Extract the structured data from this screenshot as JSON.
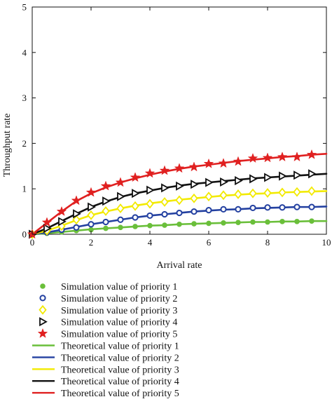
{
  "chart_data": {
    "type": "line",
    "title": "",
    "xlabel": "Arrival rate",
    "ylabel": "Throughput rate",
    "xlim": [
      0,
      10
    ],
    "ylim": [
      0,
      5
    ],
    "xticks": [
      0,
      2,
      4,
      6,
      8,
      10
    ],
    "yticks": [
      0,
      1,
      2,
      3,
      4,
      5
    ],
    "grid": false,
    "legend_position": "bottom",
    "sim_x": [
      0,
      0.5,
      1,
      1.5,
      2,
      2.5,
      3,
      3.5,
      4,
      4.5,
      5,
      5.5,
      6,
      6.5,
      7,
      7.5,
      8,
      8.5,
      9,
      9.5
    ],
    "series": [
      {
        "name": "Simulation value of priority 1",
        "kind": "markers",
        "marker": "filled-circle",
        "color": "#6abf3a",
        "values": [
          0,
          0.02,
          0.05,
          0.08,
          0.1,
          0.13,
          0.15,
          0.17,
          0.19,
          0.2,
          0.22,
          0.23,
          0.24,
          0.25,
          0.26,
          0.27,
          0.27,
          0.28,
          0.28,
          0.29
        ]
      },
      {
        "name": "Simulation value of priority 2",
        "kind": "markers",
        "marker": "open-circle",
        "color": "#2340a0",
        "values": [
          0,
          0.04,
          0.1,
          0.15,
          0.22,
          0.27,
          0.32,
          0.37,
          0.41,
          0.44,
          0.47,
          0.5,
          0.53,
          0.55,
          0.55,
          0.58,
          0.59,
          0.59,
          0.6,
          0.6
        ]
      },
      {
        "name": "Simulation value of priority 3",
        "kind": "markers",
        "marker": "open-diamond",
        "color": "#f2ea00",
        "values": [
          0,
          0.08,
          0.18,
          0.32,
          0.42,
          0.51,
          0.57,
          0.62,
          0.67,
          0.71,
          0.75,
          0.79,
          0.83,
          0.86,
          0.88,
          0.9,
          0.91,
          0.92,
          0.93,
          0.95
        ]
      },
      {
        "name": "Simulation value of priority 4",
        "kind": "markers",
        "marker": "open-triangle-right",
        "color": "#111111",
        "values": [
          0,
          0.13,
          0.28,
          0.45,
          0.6,
          0.73,
          0.83,
          0.9,
          0.97,
          1.02,
          1.06,
          1.1,
          1.14,
          1.15,
          1.18,
          1.22,
          1.25,
          1.28,
          1.3,
          1.33
        ]
      },
      {
        "name": "Simulation value of priority 5",
        "kind": "markers",
        "marker": "star",
        "color": "#e02020",
        "values": [
          0,
          0.26,
          0.5,
          0.74,
          0.92,
          1.06,
          1.14,
          1.25,
          1.34,
          1.4,
          1.45,
          1.48,
          1.55,
          1.56,
          1.6,
          1.67,
          1.68,
          1.7,
          1.7,
          1.75
        ]
      },
      {
        "name": "Theoretical value of priority 1",
        "kind": "line",
        "color": "#6abf3a",
        "x": [
          0,
          0.5,
          1,
          1.5,
          2,
          2.5,
          3,
          3.5,
          4,
          4.5,
          5,
          5.5,
          6,
          6.5,
          7,
          7.5,
          8,
          8.5,
          9,
          9.5,
          10
        ],
        "values": [
          0,
          0.02,
          0.05,
          0.08,
          0.11,
          0.13,
          0.15,
          0.17,
          0.19,
          0.2,
          0.22,
          0.23,
          0.24,
          0.25,
          0.26,
          0.27,
          0.27,
          0.28,
          0.28,
          0.29,
          0.29
        ]
      },
      {
        "name": "Theoretical value of priority 2",
        "kind": "line",
        "color": "#2340a0",
        "x": [
          0,
          0.5,
          1,
          1.5,
          2,
          2.5,
          3,
          3.5,
          4,
          4.5,
          5,
          5.5,
          6,
          6.5,
          7,
          7.5,
          8,
          8.5,
          9,
          9.5,
          10
        ],
        "values": [
          0,
          0.04,
          0.1,
          0.16,
          0.22,
          0.27,
          0.32,
          0.37,
          0.41,
          0.44,
          0.47,
          0.5,
          0.52,
          0.54,
          0.55,
          0.57,
          0.58,
          0.59,
          0.6,
          0.6,
          0.61
        ]
      },
      {
        "name": "Theoretical value of priority 3",
        "kind": "line",
        "color": "#f2ea00",
        "x": [
          0,
          0.5,
          1,
          1.5,
          2,
          2.5,
          3,
          3.5,
          4,
          4.5,
          5,
          5.5,
          6,
          6.5,
          7,
          7.5,
          8,
          8.5,
          9,
          9.5,
          10
        ],
        "values": [
          0,
          0.08,
          0.19,
          0.31,
          0.42,
          0.5,
          0.57,
          0.63,
          0.68,
          0.72,
          0.76,
          0.79,
          0.82,
          0.85,
          0.87,
          0.89,
          0.9,
          0.92,
          0.93,
          0.94,
          0.95
        ]
      },
      {
        "name": "Theoretical value of priority 4",
        "kind": "line",
        "color": "#111111",
        "x": [
          0,
          0.5,
          1,
          1.5,
          2,
          2.5,
          3,
          3.5,
          4,
          4.5,
          5,
          5.5,
          6,
          6.5,
          7,
          7.5,
          8,
          8.5,
          9,
          9.5,
          10
        ],
        "values": [
          0,
          0.13,
          0.29,
          0.45,
          0.6,
          0.72,
          0.82,
          0.9,
          0.96,
          1.02,
          1.07,
          1.11,
          1.14,
          1.17,
          1.2,
          1.23,
          1.25,
          1.27,
          1.29,
          1.31,
          1.33
        ]
      },
      {
        "name": "Theoretical value of priority 5",
        "kind": "line",
        "color": "#e02020",
        "x": [
          0,
          0.5,
          1,
          1.5,
          2,
          2.5,
          3,
          3.5,
          4,
          4.5,
          5,
          5.5,
          6,
          6.5,
          7,
          7.5,
          8,
          8.5,
          9,
          9.5,
          10
        ],
        "values": [
          0,
          0.25,
          0.5,
          0.73,
          0.9,
          1.03,
          1.14,
          1.23,
          1.31,
          1.38,
          1.44,
          1.49,
          1.53,
          1.57,
          1.61,
          1.64,
          1.67,
          1.7,
          1.72,
          1.75,
          1.77
        ]
      }
    ]
  }
}
